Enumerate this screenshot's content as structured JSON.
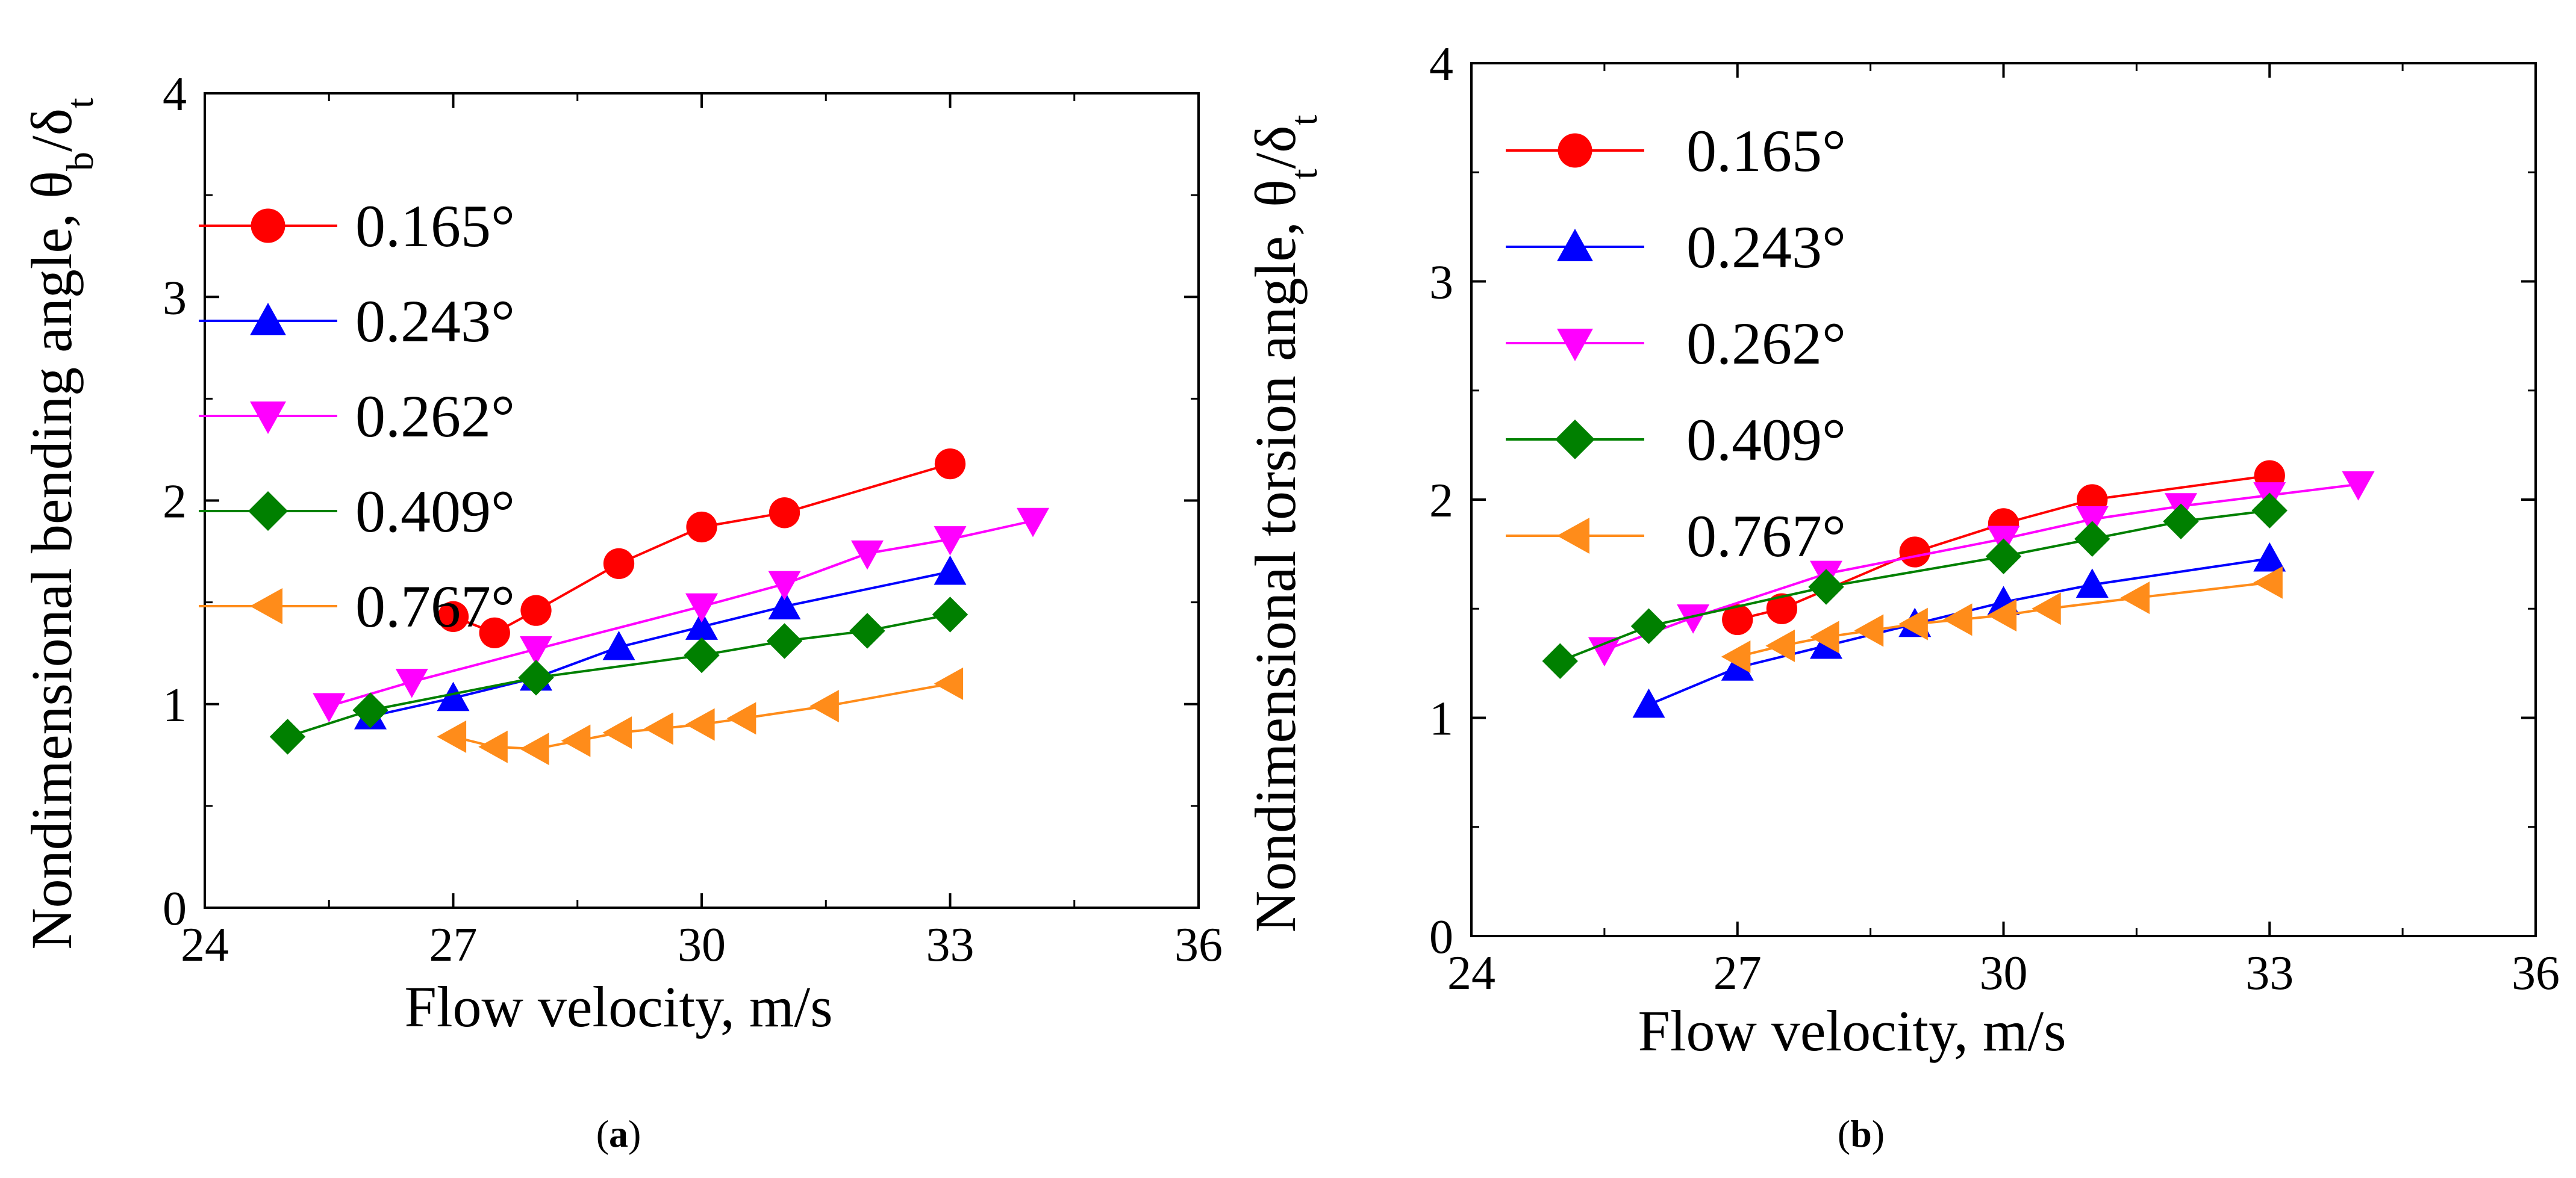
{
  "chart_data": [
    {
      "type": "line",
      "panel_label": "a",
      "xlabel": "Flow velocity, m/s",
      "ylabel_main": "Nondimensional bending angle, θ",
      "ylabel_sub1": "b",
      "ylabel_mid": "/δ",
      "ylabel_sub2": "t",
      "xlim": [
        24,
        36
      ],
      "ylim": [
        0,
        4
      ],
      "xticks": [
        "24",
        "27",
        "30",
        "33",
        "36"
      ],
      "yticks": [
        "0",
        "1",
        "2",
        "3",
        "4"
      ],
      "legend_position": "top-left",
      "series": [
        {
          "name": "0.165°",
          "color": "#ff0000",
          "marker": "circle",
          "x": [
            27,
            27.5,
            28,
            29,
            30,
            31,
            33
          ],
          "y": [
            1.43,
            1.35,
            1.46,
            1.69,
            1.87,
            1.94,
            2.18
          ]
        },
        {
          "name": "0.243°",
          "color": "#0000ff",
          "marker": "triangle-up",
          "x": [
            26,
            27,
            28,
            29,
            30,
            31,
            33
          ],
          "y": [
            0.94,
            1.03,
            1.13,
            1.28,
            1.38,
            1.48,
            1.65
          ]
        },
        {
          "name": "0.262°",
          "color": "#ff00ff",
          "marker": "triangle-down",
          "x": [
            25.5,
            26.5,
            28,
            30,
            31,
            32,
            33,
            34
          ],
          "y": [
            0.99,
            1.11,
            1.27,
            1.48,
            1.59,
            1.74,
            1.81,
            1.9
          ]
        },
        {
          "name": "0.409°",
          "color": "#008000",
          "marker": "diamond",
          "x": [
            25,
            26,
            28,
            30,
            31,
            32,
            33
          ],
          "y": [
            0.84,
            0.97,
            1.13,
            1.24,
            1.31,
            1.36,
            1.44
          ]
        },
        {
          "name": "0.767°",
          "color": "#ff8c1a",
          "marker": "triangle-left",
          "x": [
            27,
            27.5,
            28,
            28.5,
            29,
            29.5,
            30,
            30.5,
            31.5,
            33
          ],
          "y": [
            0.84,
            0.79,
            0.78,
            0.82,
            0.86,
            0.88,
            0.9,
            0.93,
            0.99,
            1.1
          ]
        }
      ]
    },
    {
      "type": "line",
      "panel_label": "b",
      "xlabel": "Flow velocity, m/s",
      "ylabel_main": "Nondimensional torsion angle, θ",
      "ylabel_sub1": "t",
      "ylabel_mid": "/δ",
      "ylabel_sub2": "t",
      "xlim": [
        24,
        36
      ],
      "ylim": [
        0,
        4
      ],
      "xticks": [
        "24",
        "27",
        "30",
        "33",
        "36"
      ],
      "yticks": [
        "0",
        "1",
        "2",
        "3",
        "4"
      ],
      "legend_position": "top-left",
      "series": [
        {
          "name": "0.165°",
          "color": "#ff0000",
          "marker": "circle",
          "x": [
            27,
            27.5,
            29,
            30,
            31,
            33
          ],
          "y": [
            1.45,
            1.5,
            1.76,
            1.89,
            2.0,
            2.11
          ]
        },
        {
          "name": "0.243°",
          "color": "#0000ff",
          "marker": "triangle-up",
          "x": [
            26,
            27,
            28,
            29,
            30,
            31,
            33
          ],
          "y": [
            1.06,
            1.23,
            1.33,
            1.43,
            1.53,
            1.61,
            1.73
          ]
        },
        {
          "name": "0.262°",
          "color": "#ff00ff",
          "marker": "triangle-down",
          "x": [
            25.5,
            26.5,
            28,
            30,
            31,
            32,
            33,
            34
          ],
          "y": [
            1.31,
            1.46,
            1.66,
            1.82,
            1.91,
            1.97,
            2.02,
            2.07
          ]
        },
        {
          "name": "0.409°",
          "color": "#008000",
          "marker": "diamond",
          "x": [
            25,
            26,
            28,
            30,
            31,
            32,
            33
          ],
          "y": [
            1.26,
            1.42,
            1.6,
            1.74,
            1.82,
            1.9,
            1.95
          ]
        },
        {
          "name": "0.767°",
          "color": "#ff8c1a",
          "marker": "triangle-left",
          "x": [
            27,
            27.5,
            28,
            28.5,
            29,
            29.5,
            30,
            30.5,
            31.5,
            33
          ],
          "y": [
            1.28,
            1.33,
            1.37,
            1.4,
            1.43,
            1.45,
            1.47,
            1.5,
            1.55,
            1.62
          ]
        }
      ]
    }
  ]
}
